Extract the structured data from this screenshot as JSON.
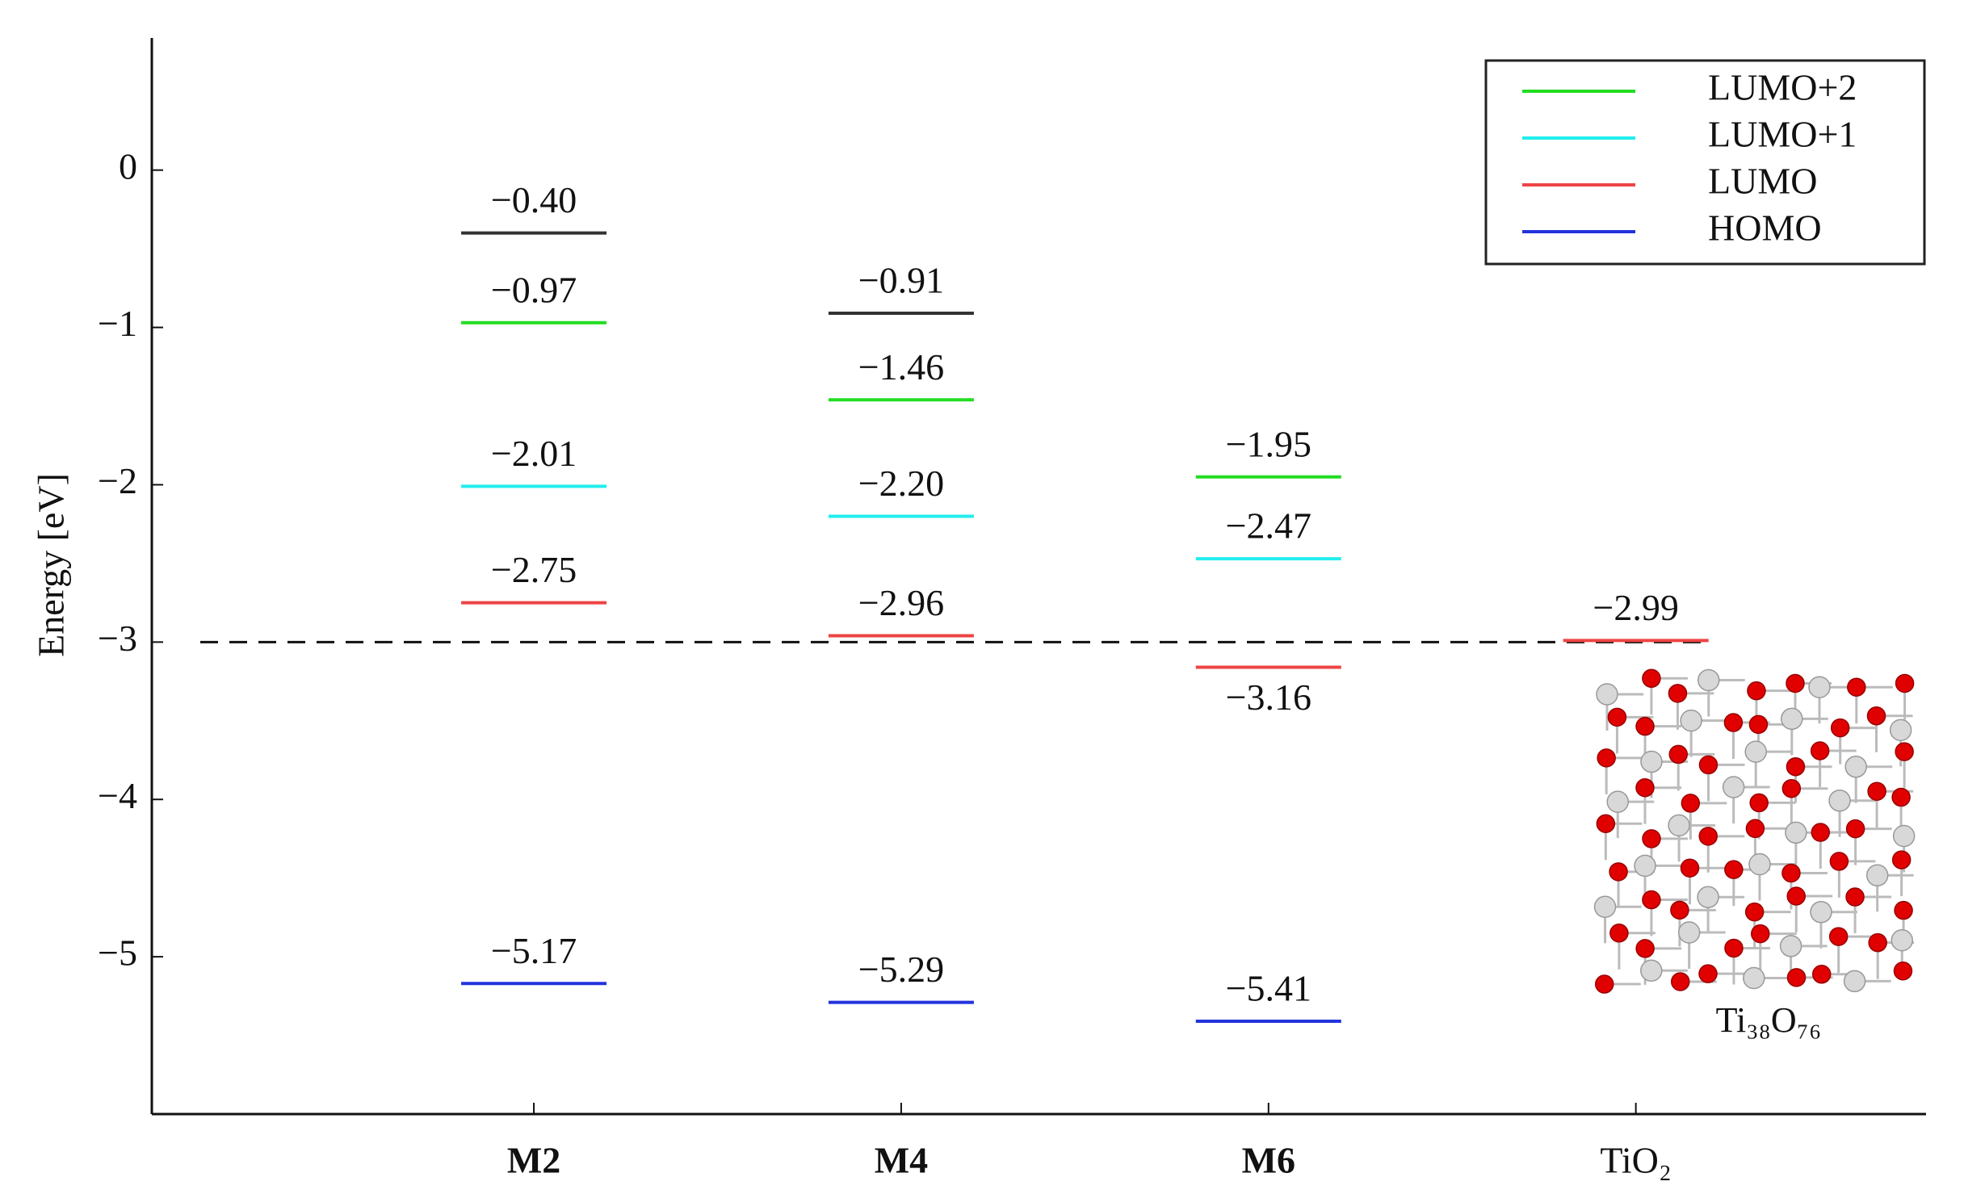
{
  "chart_data": {
    "type": "levels",
    "ylabel": "Energy [eV]",
    "categories": [
      "M2",
      "M4",
      "M6",
      "TiO₂"
    ],
    "series": [
      {
        "color": "#333333",
        "values": [
          -0.4,
          -0.91,
          null,
          null
        ],
        "value_labels": [
          "−0.40",
          "−0.91",
          null,
          null
        ]
      },
      {
        "name": "LUMO+2",
        "color": "#22dd22",
        "values": [
          -0.97,
          -1.46,
          -1.95,
          null
        ],
        "value_labels": [
          "−0.97",
          "−1.46",
          "−1.95",
          null
        ]
      },
      {
        "name": "LUMO+1",
        "color": "#22eeee",
        "values": [
          -2.01,
          -2.2,
          -2.47,
          null
        ],
        "value_labels": [
          "−2.01",
          "−2.20",
          "−2.47",
          null
        ]
      },
      {
        "name": "LUMO",
        "color": "#ee4444",
        "values": [
          -2.75,
          -2.96,
          -3.16,
          -2.99
        ],
        "value_labels": [
          "−2.75",
          "−2.96",
          "−3.16",
          "−2.99"
        ]
      },
      {
        "name": "HOMO",
        "color": "#2233dd",
        "values": [
          -5.17,
          -5.29,
          -5.41,
          null
        ],
        "value_labels": [
          "−5.17",
          "−5.29",
          "−5.41",
          null
        ]
      }
    ],
    "reference_line": -3,
    "ylim": [
      -6,
      0.84
    ],
    "yticks": [
      0,
      {
        "value": -1,
        "label": "−1"
      },
      {
        "value": -2,
        "label": "−2"
      },
      {
        "value": -3,
        "label": "−3"
      },
      {
        "value": -4,
        "label": "−4"
      },
      {
        "value": -5,
        "label": "−5"
      }
    ],
    "legend": "upper right",
    "annotation": "Ti₃₈O₇₆"
  }
}
